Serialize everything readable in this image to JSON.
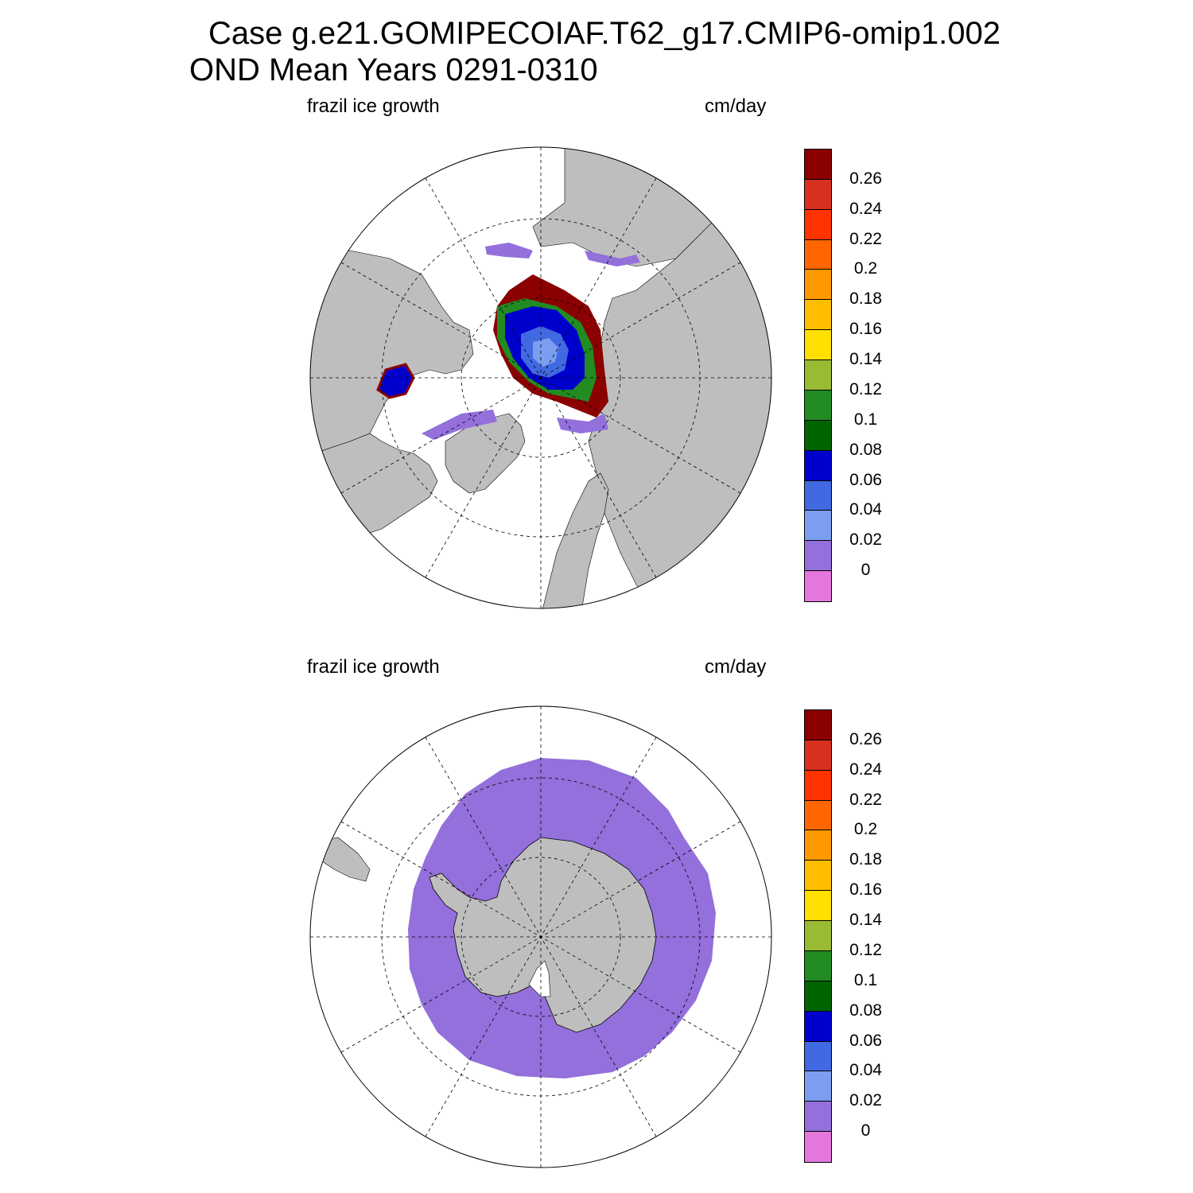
{
  "title": {
    "line1": "Case g.e21.GOMIPECOIAF.T62_g17.CMIP6-omip1.002",
    "line2": "OND Mean   Years 0291-0310"
  },
  "panels": [
    {
      "id": "north",
      "left_label": "frazil ice growth",
      "right_label": "cm/day",
      "hemisphere": "Northern polar stereographic",
      "data_summary": "High values (0.26+) along ice edge in Barents/Kara and Chukchi seas; 0.02-0.06 in central Arctic"
    },
    {
      "id": "south",
      "left_label": "frazil ice growth",
      "right_label": "cm/day",
      "hemisphere": "Southern polar stereographic",
      "data_summary": "Uniform 0-0.02 ring around Antarctica"
    }
  ],
  "colorbar": {
    "labels": [
      "0.26",
      "0.24",
      "0.22",
      "0.2",
      "0.18",
      "0.16",
      "0.14",
      "0.12",
      "0.1",
      "0.08",
      "0.06",
      "0.04",
      "0.02",
      "0"
    ],
    "colors": [
      "#8b0000",
      "#d7301f",
      "#ff3300",
      "#ff6600",
      "#ff9900",
      "#ffbf00",
      "#ffe000",
      "#99bb33",
      "#228b22",
      "#006400",
      "#0000cd",
      "#4169e1",
      "#7b9ef0",
      "#9370db",
      "#e377dc"
    ]
  },
  "colors": {
    "land": "#bebebe",
    "ocean_no_data": "#ffffff"
  }
}
